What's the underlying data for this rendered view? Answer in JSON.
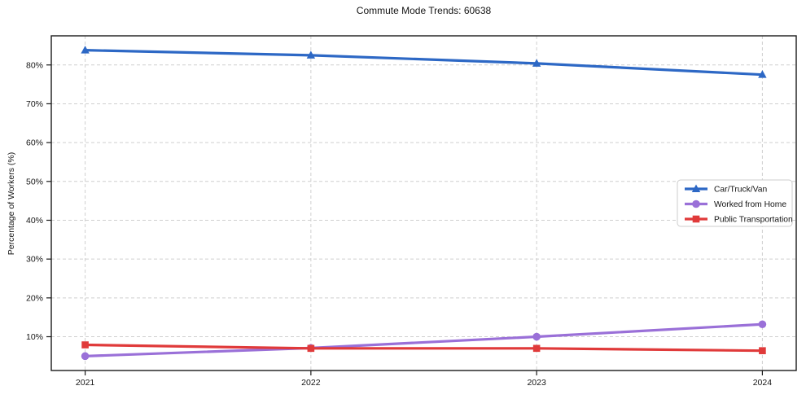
{
  "chart_data": {
    "type": "line",
    "title": "Commute Mode Trends: 60638",
    "xlabel": "",
    "ylabel": "Percentage of Workers (%)",
    "x": [
      2021,
      2022,
      2023,
      2024
    ],
    "x_tick_labels": [
      "2021",
      "2022",
      "2023",
      "2024"
    ],
    "series": [
      {
        "name": "Car/Truck/Van",
        "values": [
          83.8,
          82.5,
          80.4,
          77.5
        ],
        "color": "#2d68c5",
        "marker": "triangle"
      },
      {
        "name": "Worked from Home",
        "values": [
          5.0,
          7.1,
          10.0,
          13.2
        ],
        "color": "#9a70d8",
        "marker": "circle"
      },
      {
        "name": "Public Transportation",
        "values": [
          7.9,
          7.0,
          7.0,
          6.4
        ],
        "color": "#e03a3a",
        "marker": "square"
      }
    ],
    "yticks": [
      10,
      20,
      30,
      40,
      50,
      60,
      70,
      80
    ],
    "ytick_labels": [
      "10%",
      "20%",
      "30%",
      "40%",
      "50%",
      "60%",
      "70%",
      "80%"
    ],
    "ylim": [
      1.3,
      87.5
    ],
    "xlim": [
      2020.85,
      2024.15
    ],
    "grid": true,
    "grid_style": "dashed",
    "grid_color": "#cfcfcf",
    "spine_color": "#1a1a1a",
    "background_color": "#ffffff",
    "legend_position": "center-right",
    "legend": {
      "entries": [
        "Car/Truck/Van",
        "Worked from Home",
        "Public Transportation"
      ],
      "border_color": "#cccccc",
      "background_color": "#ffffff"
    }
  }
}
